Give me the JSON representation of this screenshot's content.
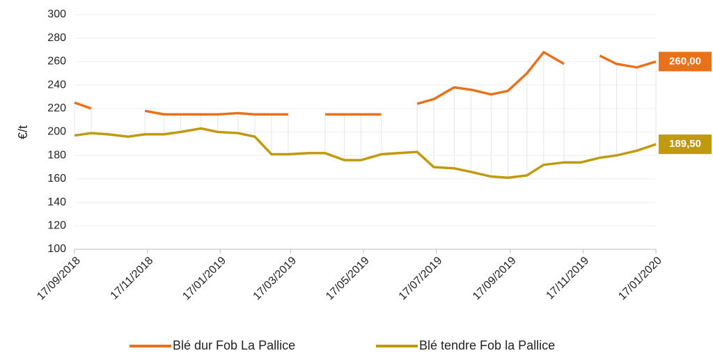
{
  "chart_data": {
    "type": "line",
    "y_label": "€/t",
    "x": [
      "2018-09-17",
      "2018-10-01",
      "2018-10-15",
      "2018-11-01",
      "2018-11-15",
      "2018-12-01",
      "2018-12-15",
      "2019-01-01",
      "2019-01-15",
      "2019-02-01",
      "2019-02-15",
      "2019-03-01",
      "2019-03-15",
      "2019-04-01",
      "2019-04-15",
      "2019-05-01",
      "2019-05-15",
      "2019-06-01",
      "2019-06-15",
      "2019-07-01",
      "2019-07-15",
      "2019-08-01",
      "2019-08-15",
      "2019-09-01",
      "2019-09-15",
      "2019-10-01",
      "2019-10-15",
      "2019-11-01",
      "2019-11-15",
      "2019-12-01",
      "2019-12-15",
      "2020-01-01",
      "2020-01-17"
    ],
    "series": [
      {
        "name": "Blé dur Fob La Pallice",
        "color": "#e8711c",
        "end_label": "260,00",
        "values": [
          225,
          220,
          null,
          null,
          218,
          215,
          215,
          215,
          215,
          216,
          215,
          215,
          215,
          null,
          215,
          215,
          215,
          215,
          null,
          224,
          228,
          238,
          236,
          232,
          235,
          250,
          268,
          258,
          null,
          265,
          258,
          255,
          260
        ]
      },
      {
        "name": "Blé tendre Fob la Pallice",
        "color": "#bf9a0c",
        "end_label": "189,50",
        "values": [
          197,
          199,
          198,
          196,
          198,
          198,
          200,
          203,
          200,
          199,
          196,
          181,
          181,
          182,
          182,
          176,
          176,
          181,
          182,
          183,
          170,
          169,
          166,
          162,
          161,
          163,
          172,
          174,
          174,
          178,
          180,
          184,
          189.5
        ]
      }
    ],
    "xlim": [
      "2018-09-17",
      "2020-01-17"
    ],
    "xticks": [
      {
        "value": "2018-09-17",
        "label": "17/09/2018"
      },
      {
        "value": "2018-11-17",
        "label": "17/11/2018"
      },
      {
        "value": "2019-01-17",
        "label": "17/01/2019"
      },
      {
        "value": "2019-03-17",
        "label": "17/03/2019"
      },
      {
        "value": "2019-05-17",
        "label": "17/05/2019"
      },
      {
        "value": "2019-07-17",
        "label": "17/07/2019"
      },
      {
        "value": "2019-09-17",
        "label": "17/09/2019"
      },
      {
        "value": "2019-11-17",
        "label": "17/11/2019"
      },
      {
        "value": "2020-01-17",
        "label": "17/01/2020"
      }
    ],
    "ylim": [
      100,
      300
    ],
    "yticks": [
      100,
      120,
      140,
      160,
      180,
      200,
      220,
      240,
      260,
      280,
      300
    ],
    "grid": true,
    "legend": "bottom"
  }
}
